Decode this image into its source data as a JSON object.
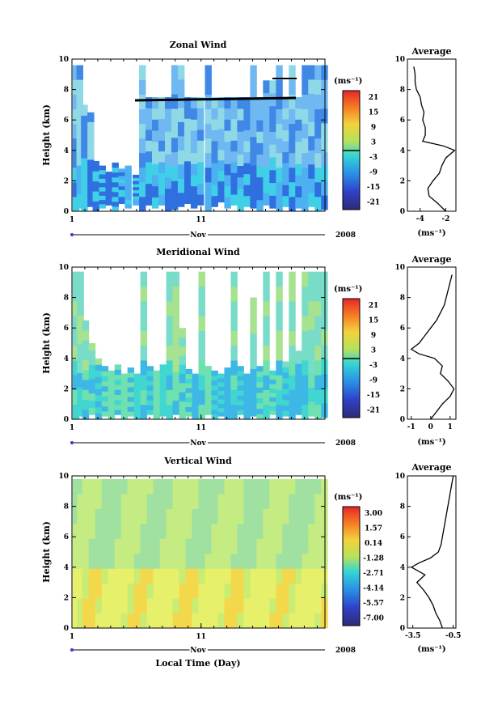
{
  "chart_data": [
    {
      "type": "heatmap",
      "title": "Zonal Wind",
      "ylabel": "Height (km)",
      "ylim": [
        0,
        10
      ],
      "yticks": [
        "0",
        "2",
        "4",
        "6",
        "8",
        "10"
      ],
      "xticks": [
        "1",
        "11"
      ],
      "month_label": "Nov",
      "year_label": "2008",
      "colorbar": {
        "unit": "(ms⁻¹)",
        "ticks": [
          "21",
          "15",
          "9",
          "3",
          "-3",
          "-9",
          "-15",
          "-21"
        ]
      },
      "columns": [
        {
          "x": 0.05,
          "top": 9.6,
          "base": 0.0
        },
        {
          "x": 0.35,
          "top": 9.6,
          "base": 0.2
        },
        {
          "x": 0.7,
          "top": 7.0,
          "base": 0.0
        },
        {
          "x": 1.2,
          "top": 6.5,
          "base": 0.3
        },
        {
          "x": 1.6,
          "top": 3.3,
          "base": 0.0
        },
        {
          "x": 2.1,
          "top": 3.0,
          "base": 0.2
        },
        {
          "x": 2.6,
          "top": 2.6,
          "base": 0.4
        },
        {
          "x": 3.1,
          "top": 3.2,
          "base": 0.0
        },
        {
          "x": 3.6,
          "top": 2.8,
          "base": 0.5
        },
        {
          "x": 4.1,
          "top": 3.0,
          "base": 0.2
        },
        {
          "x": 4.7,
          "top": 2.4,
          "base": 0.4
        },
        {
          "x": 5.2,
          "top": 9.6,
          "base": 0.0
        },
        {
          "x": 5.7,
          "top": 7.5,
          "base": 0.4
        },
        {
          "x": 6.2,
          "top": 7.5,
          "base": 0.2
        },
        {
          "x": 6.7,
          "top": 7.5,
          "base": 0.4
        },
        {
          "x": 7.2,
          "top": 7.5,
          "base": 0.0
        },
        {
          "x": 7.7,
          "top": 9.6,
          "base": 0.1
        },
        {
          "x": 8.2,
          "top": 9.6,
          "base": 0.3
        },
        {
          "x": 8.7,
          "top": 7.5,
          "base": 0.5
        },
        {
          "x": 9.2,
          "top": 7.5,
          "base": 0.2
        },
        {
          "x": 9.7,
          "top": 7.5,
          "base": 0.4
        },
        {
          "x": 10.3,
          "top": 9.6,
          "base": 0.0
        },
        {
          "x": 10.8,
          "top": 7.5,
          "base": 0.3
        },
        {
          "x": 11.3,
          "top": 7.5,
          "base": 0.6
        },
        {
          "x": 11.8,
          "top": 7.5,
          "base": 0.2
        },
        {
          "x": 12.3,
          "top": 7.5,
          "base": 0.4
        },
        {
          "x": 12.8,
          "top": 7.5,
          "base": 0.0
        },
        {
          "x": 13.3,
          "top": 7.5,
          "base": 0.3
        },
        {
          "x": 13.8,
          "top": 9.6,
          "base": 0.2
        },
        {
          "x": 14.3,
          "top": 7.5,
          "base": 0.0
        },
        {
          "x": 14.8,
          "top": 8.6,
          "base": 0.4
        },
        {
          "x": 15.3,
          "top": 8.6,
          "base": 0.2
        },
        {
          "x": 15.8,
          "top": 9.6,
          "base": 0.0
        },
        {
          "x": 16.3,
          "top": 7.5,
          "base": 0.3
        },
        {
          "x": 16.8,
          "top": 9.6,
          "base": 0.0
        },
        {
          "x": 17.3,
          "top": 7.5,
          "base": 0.2
        },
        {
          "x": 17.8,
          "top": 9.6,
          "base": 0.0
        },
        {
          "x": 18.3,
          "top": 9.6,
          "base": 0.3
        },
        {
          "x": 18.8,
          "top": 9.6,
          "base": 0.0
        },
        {
          "x": 19.3,
          "top": 9.6,
          "base": 0.1
        }
      ],
      "profile": {
        "xlim": [
          -5,
          -1.2
        ],
        "xticks": [
          -4,
          -2
        ],
        "unit": "(ms⁻¹)",
        "title": "Average",
        "height": [
          0,
          0.5,
          1,
          1.5,
          2,
          2.5,
          3,
          3.5,
          4,
          4.3,
          4.6,
          5,
          5.5,
          6,
          6.5,
          7,
          7.5,
          8,
          8.5,
          9,
          9.5
        ],
        "value": [
          -2.0,
          -2.6,
          -3.3,
          -3.4,
          -3.0,
          -2.5,
          -2.3,
          -2.0,
          -1.3,
          -2.2,
          -3.8,
          -3.6,
          -3.6,
          -3.8,
          -3.7,
          -3.9,
          -4.0,
          -4.3,
          -4.4,
          -4.4,
          -4.5
        ]
      }
    },
    {
      "type": "heatmap",
      "title": "Meridional Wind",
      "ylabel": "Height (km)",
      "ylim": [
        0,
        10
      ],
      "yticks": [
        "0",
        "2",
        "4",
        "6",
        "8",
        "10"
      ],
      "xticks": [
        "1",
        "11"
      ],
      "month_label": "Nov",
      "year_label": "2008",
      "colorbar": {
        "unit": "(ms⁻¹)",
        "ticks": [
          "21",
          "15",
          "9",
          "3",
          "-3",
          "-9",
          "-15",
          "-21"
        ]
      },
      "columns": [
        {
          "x": 0.05,
          "top": 9.7,
          "base": 0.0
        },
        {
          "x": 0.4,
          "top": 9.7,
          "base": 0.2
        },
        {
          "x": 0.8,
          "top": 6.5,
          "base": 0.0
        },
        {
          "x": 1.3,
          "top": 5.0,
          "base": 0.3
        },
        {
          "x": 1.8,
          "top": 4.0,
          "base": 0.0
        },
        {
          "x": 2.3,
          "top": 3.5,
          "base": 0.2
        },
        {
          "x": 2.8,
          "top": 3.2,
          "base": 0.0
        },
        {
          "x": 3.3,
          "top": 3.6,
          "base": 0.3
        },
        {
          "x": 3.8,
          "top": 3.0,
          "base": 0.0
        },
        {
          "x": 4.3,
          "top": 3.4,
          "base": 0.2
        },
        {
          "x": 4.8,
          "top": 3.0,
          "base": 0.0
        },
        {
          "x": 5.3,
          "top": 9.7,
          "base": 0.0
        },
        {
          "x": 5.8,
          "top": 3.5,
          "base": 0.3
        },
        {
          "x": 6.3,
          "top": 3.2,
          "base": 0.0
        },
        {
          "x": 6.8,
          "top": 3.6,
          "base": 0.2
        },
        {
          "x": 7.3,
          "top": 9.7,
          "base": 0.0
        },
        {
          "x": 7.8,
          "top": 9.7,
          "base": 0.3
        },
        {
          "x": 8.3,
          "top": 6.0,
          "base": 0.0
        },
        {
          "x": 8.8,
          "top": 3.3,
          "base": 0.2
        },
        {
          "x": 9.3,
          "top": 3.0,
          "base": 0.0
        },
        {
          "x": 9.8,
          "top": 9.7,
          "base": 0.0
        },
        {
          "x": 10.3,
          "top": 3.5,
          "base": 0.3
        },
        {
          "x": 10.8,
          "top": 3.2,
          "base": 0.0
        },
        {
          "x": 11.3,
          "top": 3.0,
          "base": 0.2
        },
        {
          "x": 11.8,
          "top": 3.4,
          "base": 0.0
        },
        {
          "x": 12.3,
          "top": 9.7,
          "base": 0.0
        },
        {
          "x": 12.8,
          "top": 3.5,
          "base": 0.3
        },
        {
          "x": 13.3,
          "top": 3.0,
          "base": 0.0
        },
        {
          "x": 13.8,
          "top": 8.0,
          "base": 0.2
        },
        {
          "x": 14.3,
          "top": 3.5,
          "base": 0.0
        },
        {
          "x": 14.8,
          "top": 9.7,
          "base": 0.0
        },
        {
          "x": 15.3,
          "top": 3.2,
          "base": 0.3
        },
        {
          "x": 15.8,
          "top": 9.7,
          "base": 0.0
        },
        {
          "x": 16.3,
          "top": 3.8,
          "base": 0.2
        },
        {
          "x": 16.8,
          "top": 9.7,
          "base": 0.0
        },
        {
          "x": 17.3,
          "top": 4.5,
          "base": 0.3
        },
        {
          "x": 17.8,
          "top": 9.7,
          "base": 0.0
        },
        {
          "x": 18.3,
          "top": 9.7,
          "base": 0.2
        },
        {
          "x": 18.8,
          "top": 9.7,
          "base": 0.0
        },
        {
          "x": 19.3,
          "top": 9.7,
          "base": 0.1
        }
      ],
      "profile": {
        "xlim": [
          -1.2,
          1.3
        ],
        "xticks": [
          -1,
          0,
          1
        ],
        "unit": "(ms⁻¹)",
        "title": "Average",
        "height": [
          0,
          0.5,
          1,
          1.5,
          2,
          2.5,
          3,
          3.5,
          4,
          4.3,
          4.6,
          5,
          5.5,
          6,
          6.5,
          7,
          7.5,
          8,
          8.5,
          9,
          9.5
        ],
        "value": [
          0.0,
          0.3,
          0.6,
          1.0,
          1.2,
          0.9,
          0.5,
          0.6,
          0.2,
          -0.6,
          -1.0,
          -0.6,
          -0.3,
          0.0,
          0.3,
          0.5,
          0.7,
          0.8,
          0.9,
          1.0,
          1.1
        ]
      }
    },
    {
      "type": "heatmap",
      "title": "Vertical Wind",
      "xlabel": "Local Time (Day)",
      "ylabel": "Height (km)",
      "ylim": [
        0,
        10
      ],
      "yticks": [
        "0",
        "2",
        "4",
        "6",
        "8",
        "10"
      ],
      "xticks": [
        "1",
        "11"
      ],
      "month_label": "Nov",
      "year_label": "2008",
      "colorbar": {
        "unit": "(ms⁻¹)",
        "ticks": [
          "3.00",
          "1.57",
          "0.14",
          "-1.28",
          "-2.71",
          "-4.14",
          "-5.57",
          "-7.00"
        ]
      },
      "columns": [
        {
          "x": 0.05,
          "top": 9.8,
          "base": 0.0
        },
        {
          "x": 0.4,
          "top": 9.8,
          "base": 0.0
        },
        {
          "x": 0.8,
          "top": 9.8,
          "base": 0.0
        },
        {
          "x": 1.3,
          "top": 9.8,
          "base": 0.0
        },
        {
          "x": 1.8,
          "top": 9.8,
          "base": 0.0
        },
        {
          "x": 2.3,
          "top": 9.8,
          "base": 0.0
        },
        {
          "x": 2.8,
          "top": 9.8,
          "base": 0.0
        },
        {
          "x": 3.3,
          "top": 9.8,
          "base": 0.0
        },
        {
          "x": 3.8,
          "top": 9.8,
          "base": 0.0
        },
        {
          "x": 4.3,
          "top": 9.8,
          "base": 0.0
        },
        {
          "x": 4.8,
          "top": 9.8,
          "base": 0.0
        },
        {
          "x": 5.3,
          "top": 9.8,
          "base": 0.0
        },
        {
          "x": 5.8,
          "top": 9.8,
          "base": 0.0
        },
        {
          "x": 6.3,
          "top": 9.8,
          "base": 0.0
        },
        {
          "x": 6.8,
          "top": 9.8,
          "base": 0.0
        },
        {
          "x": 7.3,
          "top": 9.8,
          "base": 0.0
        },
        {
          "x": 7.8,
          "top": 9.8,
          "base": 0.0
        },
        {
          "x": 8.3,
          "top": 9.8,
          "base": 0.0
        },
        {
          "x": 8.8,
          "top": 9.8,
          "base": 0.0
        },
        {
          "x": 9.3,
          "top": 9.8,
          "base": 0.0
        },
        {
          "x": 9.8,
          "top": 9.8,
          "base": 0.0
        },
        {
          "x": 10.3,
          "top": 9.8,
          "base": 0.0
        },
        {
          "x": 10.8,
          "top": 9.8,
          "base": 0.0
        },
        {
          "x": 11.3,
          "top": 9.8,
          "base": 0.0
        },
        {
          "x": 11.8,
          "top": 9.8,
          "base": 0.0
        },
        {
          "x": 12.3,
          "top": 9.8,
          "base": 0.0
        },
        {
          "x": 12.8,
          "top": 9.8,
          "base": 0.0
        },
        {
          "x": 13.3,
          "top": 9.8,
          "base": 0.0
        },
        {
          "x": 13.8,
          "top": 9.8,
          "base": 0.0
        },
        {
          "x": 14.3,
          "top": 9.8,
          "base": 0.0
        },
        {
          "x": 14.8,
          "top": 9.8,
          "base": 0.0
        },
        {
          "x": 15.3,
          "top": 9.8,
          "base": 0.0
        },
        {
          "x": 15.8,
          "top": 9.8,
          "base": 0.0
        },
        {
          "x": 16.3,
          "top": 9.8,
          "base": 0.0
        },
        {
          "x": 16.8,
          "top": 9.8,
          "base": 0.0
        },
        {
          "x": 17.3,
          "top": 9.8,
          "base": 0.0
        },
        {
          "x": 17.8,
          "top": 9.8,
          "base": 0.0
        },
        {
          "x": 18.3,
          "top": 9.8,
          "base": 0.0
        },
        {
          "x": 18.8,
          "top": 9.8,
          "base": 0.0
        },
        {
          "x": 19.3,
          "top": 9.8,
          "base": 0.0
        }
      ],
      "profile": {
        "xlim": [
          -3.9,
          -0.3
        ],
        "xticks": [
          -3.5,
          -0.5
        ],
        "unit": "(ms⁻¹)",
        "title": "Average",
        "height": [
          0,
          0.5,
          1,
          1.5,
          2,
          2.5,
          3,
          3.5,
          4,
          4.3,
          4.6,
          5,
          5.5,
          6,
          6.5,
          7,
          7.5,
          8,
          8.5,
          9,
          9.5,
          10
        ],
        "value": [
          -1.3,
          -1.5,
          -1.8,
          -2.0,
          -2.3,
          -2.7,
          -3.2,
          -2.6,
          -3.6,
          -3.0,
          -2.2,
          -1.6,
          -1.4,
          -1.3,
          -1.2,
          -1.1,
          -1.0,
          -0.9,
          -0.8,
          -0.7,
          -0.6,
          -0.5
        ]
      }
    }
  ]
}
